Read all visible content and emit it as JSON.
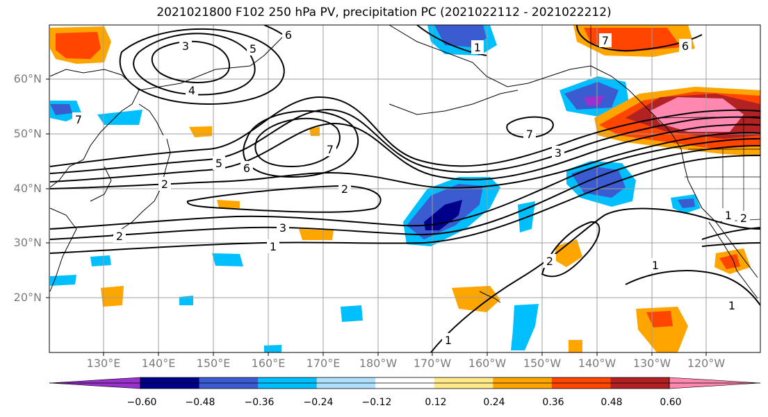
{
  "title": "2021021800 F102 250 hPa PV, precipitation PC (2021022112 - 2021022212)",
  "lat_labels": [
    "60°N",
    "50°N",
    "40°N",
    "30°N",
    "20°N"
  ],
  "lon_labels": [
    "130°E",
    "140°E",
    "150°E",
    "160°E",
    "170°E",
    "180°W",
    "170°W",
    "160°W",
    "150°W",
    "140°W",
    "130°W",
    "120°W"
  ],
  "contour_labels": [
    "3",
    "4",
    "5",
    "6",
    "7",
    "5",
    "6",
    "7",
    "2",
    "2",
    "3",
    "1",
    "1",
    "2",
    "1",
    "2",
    "3",
    "7",
    "7",
    "6",
    "1",
    "1",
    "1",
    "2"
  ],
  "colorbar": {
    "ticks": [
      "−0.60",
      "−0.48",
      "−0.36",
      "−0.24",
      "−0.12",
      "0.12",
      "0.24",
      "0.36",
      "0.48",
      "0.60"
    ],
    "colors": [
      "#9932cc",
      "#00008b",
      "#3b5bd1",
      "#00bfff",
      "#b0e0ff",
      "#ffffff",
      "#ffe98a",
      "#ffa500",
      "#ff4500",
      "#b22222",
      "#ff88b0"
    ]
  },
  "legend_colors": {
    "neg_dark": "#00008b",
    "neg_mid": "#3b5bd1",
    "neg_light": "#00bfff",
    "neg_pale": "#b0e0ff",
    "pos_pale": "#ffe98a",
    "pos_light": "#ffa500",
    "pos_mid": "#ff4500",
    "pos_dark": "#b22222",
    "pos_max": "#ff88b0"
  }
}
